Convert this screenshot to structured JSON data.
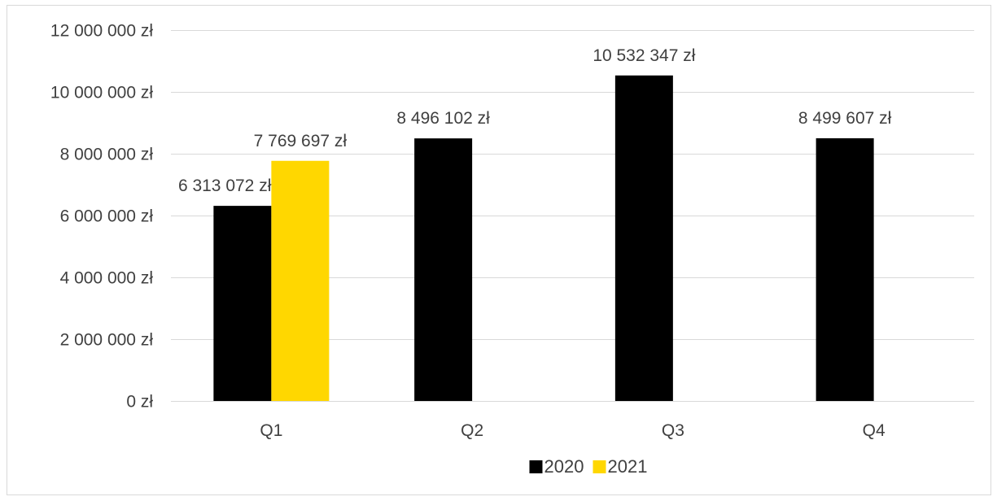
{
  "chart_data": {
    "type": "bar",
    "categories": [
      "Q1",
      "Q2",
      "Q3",
      "Q4"
    ],
    "series": [
      {
        "name": "2020",
        "color": "#000000",
        "values": [
          6313072,
          8496102,
          10532347,
          8499607
        ],
        "labels": [
          "6 313 072 zł",
          "8 496 102 zł",
          "10 532 347 zł",
          "8 499 607 zł"
        ]
      },
      {
        "name": "2021",
        "color": "#FFD700",
        "values": [
          7769697,
          null,
          null,
          null
        ],
        "labels": [
          "7 769 697 zł",
          null,
          null,
          null
        ]
      }
    ],
    "yticks": [
      {
        "value": 0,
        "label": "0 zł"
      },
      {
        "value": 2000000,
        "label": "2 000 000 zł"
      },
      {
        "value": 4000000,
        "label": "4 000 000 zł"
      },
      {
        "value": 6000000,
        "label": "6 000 000 zł"
      },
      {
        "value": 8000000,
        "label": "8 000 000 zł"
      },
      {
        "value": 10000000,
        "label": "10 000 000 zł"
      },
      {
        "value": 12000000,
        "label": "12 000 000 zł"
      }
    ],
    "ylim": [
      0,
      12000000
    ],
    "grid": true,
    "legend_position": "bottom",
    "gridline_color": "#d9d9d9",
    "title": "",
    "xlabel": "",
    "ylabel": ""
  }
}
